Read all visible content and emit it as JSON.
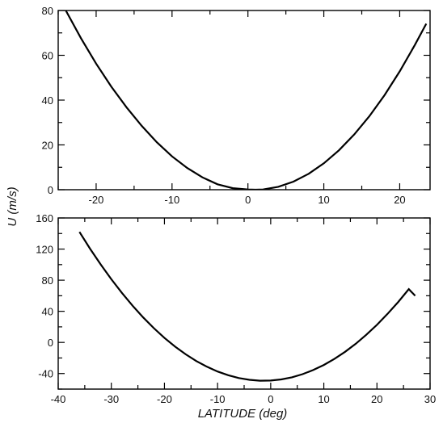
{
  "chart_data": [
    {
      "type": "line",
      "panel": "top",
      "xlim": [
        -25,
        24
      ],
      "ylim": [
        0,
        80
      ],
      "xticks": [
        -20,
        -10,
        0,
        10,
        20
      ],
      "yticks": [
        0,
        20,
        40,
        60,
        80
      ],
      "xtick_labels": [
        "-20",
        "-10",
        "0",
        "10",
        "20"
      ],
      "ytick_labels": [
        "0",
        "20",
        "40",
        "60",
        "80"
      ],
      "series": [
        {
          "x": [
            -24,
            -22,
            -20,
            -18,
            -16,
            -14,
            -12,
            -10,
            -8,
            -6,
            -4,
            -2,
            0,
            1,
            2,
            4,
            6,
            8,
            10,
            12,
            14,
            16,
            18,
            20,
            22,
            23.5
          ],
          "y": [
            80,
            67.6,
            56.3,
            46,
            36.8,
            28.5,
            21.2,
            14.9,
            9.7,
            5.5,
            2.4,
            0.7,
            0.1,
            0,
            0.1,
            1.3,
            3.6,
            7.1,
            11.8,
            17.6,
            24.6,
            32.8,
            42.2,
            52.8,
            64.6,
            74.1
          ]
        }
      ]
    },
    {
      "type": "line",
      "panel": "bottom",
      "xlim": [
        -40,
        30
      ],
      "ylim": [
        -60,
        160
      ],
      "xticks": [
        -40,
        -30,
        -20,
        -10,
        0,
        10,
        20,
        30
      ],
      "yticks": [
        -40,
        0,
        40,
        80,
        120,
        160
      ],
      "xtick_labels": [
        "-40",
        "-30",
        "-20",
        "-10",
        "0",
        "10",
        "20",
        "30"
      ],
      "ytick_labels": [
        "-40",
        "0",
        "40",
        "80",
        "120",
        "160"
      ],
      "series": [
        {
          "x": [
            -36,
            -34,
            -32,
            -30,
            -28,
            -26,
            -24,
            -22,
            -20,
            -18,
            -16,
            -14,
            -12,
            -10,
            -8,
            -6,
            -4,
            -2,
            0,
            2,
            4,
            6,
            8,
            10,
            12,
            14,
            16,
            18,
            20,
            22,
            24,
            26,
            27.2
          ],
          "y": [
            142,
            120.5,
            100.2,
            81.2,
            63.6,
            47.2,
            32.1,
            18.3,
            5.8,
            -5.4,
            -15.3,
            -24,
            -31.3,
            -37.4,
            -42.2,
            -45.8,
            -48.1,
            -49.2,
            -49,
            -47.5,
            -44.8,
            -40.8,
            -35.5,
            -29,
            -21.2,
            -12.1,
            -1.8,
            9.8,
            22.6,
            36.7,
            52,
            68.5,
            60
          ]
        }
      ]
    }
  ],
  "ylabel": "U (m/s)",
  "xlabel": "LATITUDE (deg)"
}
